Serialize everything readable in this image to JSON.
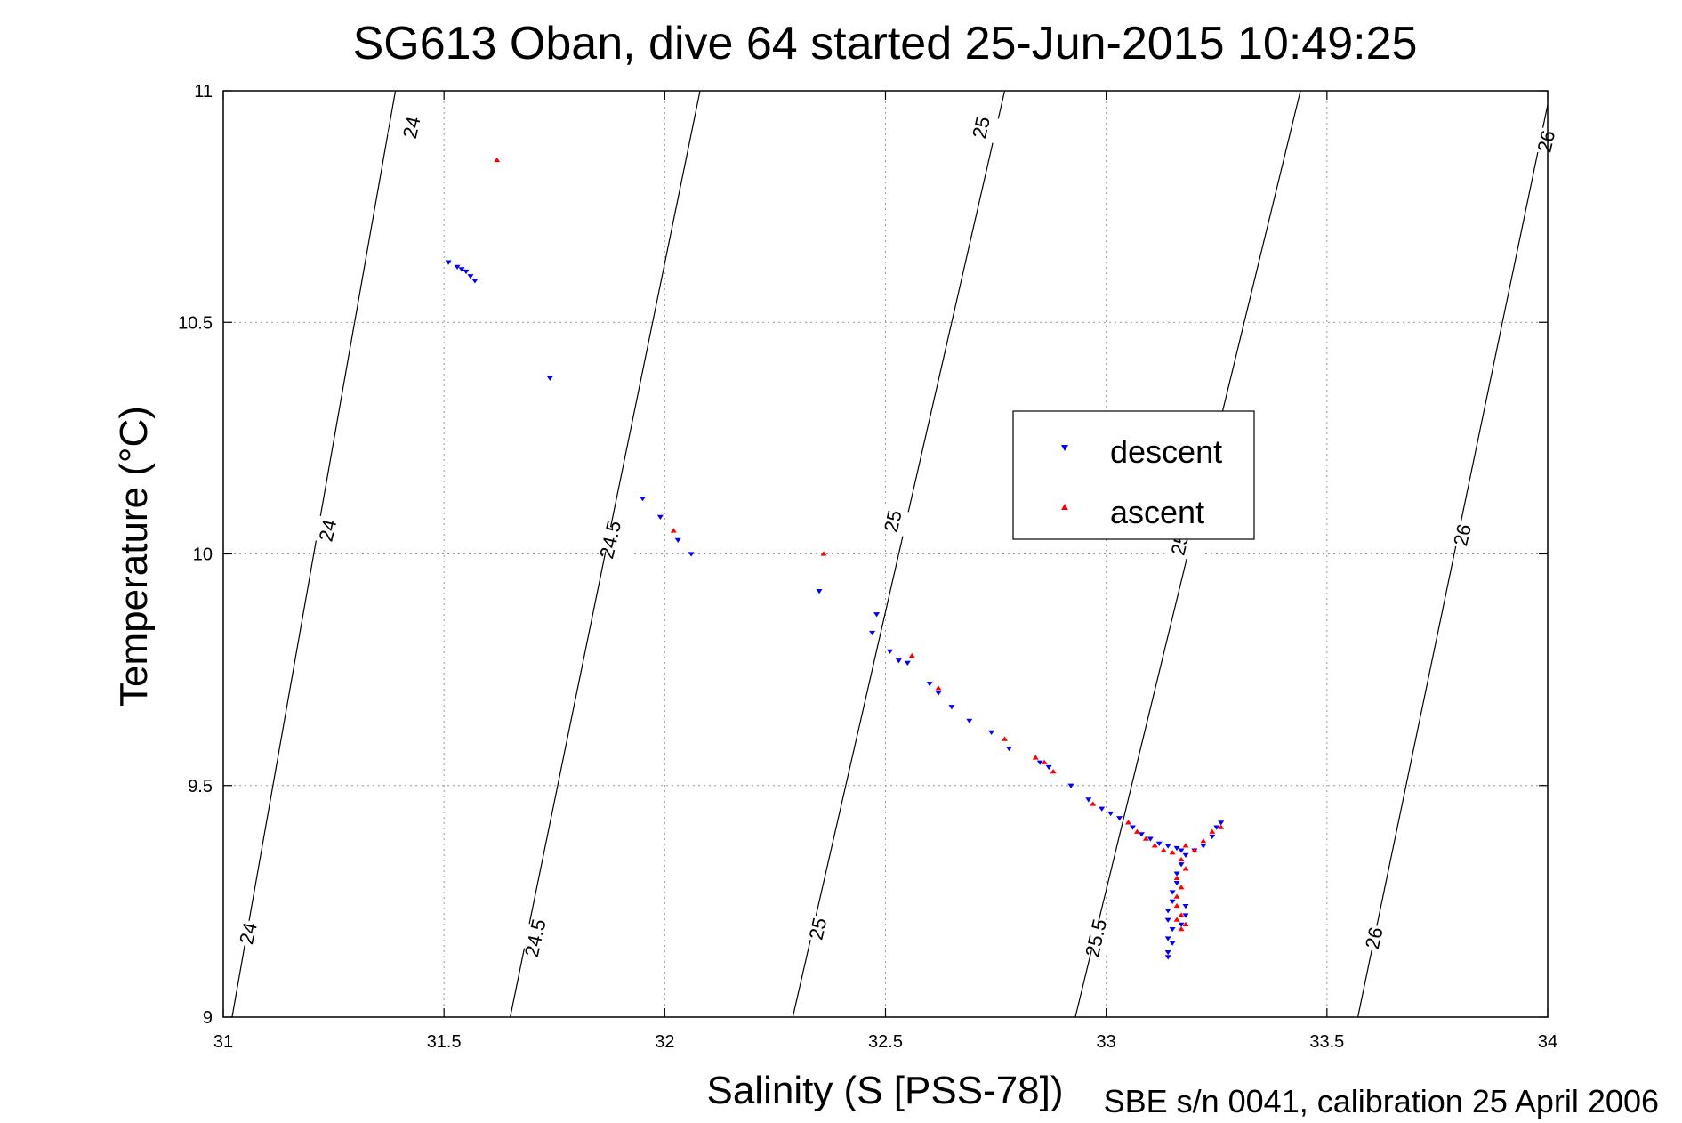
{
  "chart_data": {
    "type": "scatter",
    "title": "SG613 Oban, dive 64 started 25-Jun-2015 10:49:25",
    "xlabel": "Salinity (S [PSS-78])",
    "ylabel": "Temperature (°C)",
    "footnote": "SBE s/n 0041, calibration 25 April 2006",
    "xlim": [
      31,
      34
    ],
    "ylim": [
      9,
      11
    ],
    "x_ticks": [
      "31",
      "31.5",
      "32",
      "32.5",
      "33",
      "33.5",
      "34"
    ],
    "y_ticks": [
      "9",
      "9.5",
      "10",
      "10.5",
      "11"
    ],
    "grid": true,
    "legend_position": "center-right",
    "legend": [
      {
        "label": "descent",
        "color": "#0000ff",
        "marker": "triangle-down"
      },
      {
        "label": "ascent",
        "color": "#ff0000",
        "marker": "triangle-up"
      }
    ],
    "density_contours": [
      {
        "label": "24",
        "points": [
          [
            31.02,
            9.0
          ],
          [
            31.39,
            11.0
          ]
        ]
      },
      {
        "label": "24.5",
        "points": [
          [
            31.65,
            9.0
          ],
          [
            32.08,
            11.0
          ]
        ]
      },
      {
        "label": "25",
        "points": [
          [
            32.29,
            9.0
          ],
          [
            32.77,
            11.0
          ]
        ]
      },
      {
        "label": "25.5",
        "points": [
          [
            32.93,
            9.0
          ],
          [
            33.44,
            11.0
          ]
        ]
      },
      {
        "label": "26",
        "points": [
          [
            33.57,
            9.0
          ],
          [
            34.0,
            10.97
          ]
        ]
      }
    ],
    "contour_labels": [
      {
        "text": "24",
        "x": 31.43,
        "y": 10.92
      },
      {
        "text": "24",
        "x": 31.24,
        "y": 10.05
      },
      {
        "text": "24",
        "x": 31.06,
        "y": 9.18
      },
      {
        "text": "24.5",
        "x": 31.88,
        "y": 10.03
      },
      {
        "text": "24.5",
        "x": 31.71,
        "y": 9.17
      },
      {
        "text": "25",
        "x": 32.72,
        "y": 10.92
      },
      {
        "text": "25",
        "x": 32.52,
        "y": 10.07
      },
      {
        "text": "25",
        "x": 32.35,
        "y": 9.19
      },
      {
        "text": "25",
        "x": 33.17,
        "y": 10.02
      },
      {
        "text": "25.5",
        "x": 32.98,
        "y": 9.17
      },
      {
        "text": "26",
        "x": 34.0,
        "y": 10.89
      },
      {
        "text": "26",
        "x": 33.81,
        "y": 10.04
      },
      {
        "text": "26",
        "x": 33.61,
        "y": 9.17
      }
    ],
    "series": [
      {
        "name": "descent",
        "points": [
          [
            31.51,
            10.63
          ],
          [
            31.53,
            10.62
          ],
          [
            31.54,
            10.615
          ],
          [
            31.55,
            10.61
          ],
          [
            31.56,
            10.6
          ],
          [
            31.57,
            10.59
          ],
          [
            31.74,
            10.38
          ],
          [
            31.95,
            10.12
          ],
          [
            31.99,
            10.08
          ],
          [
            32.03,
            10.03
          ],
          [
            32.06,
            10.0
          ],
          [
            32.35,
            9.92
          ],
          [
            32.48,
            9.87
          ],
          [
            32.47,
            9.83
          ],
          [
            32.51,
            9.79
          ],
          [
            32.53,
            9.77
          ],
          [
            32.55,
            9.765
          ],
          [
            32.6,
            9.72
          ],
          [
            32.62,
            9.7
          ],
          [
            32.65,
            9.67
          ],
          [
            32.69,
            9.64
          ],
          [
            32.74,
            9.615
          ],
          [
            32.78,
            9.58
          ],
          [
            32.85,
            9.55
          ],
          [
            32.87,
            9.54
          ],
          [
            32.92,
            9.5
          ],
          [
            32.96,
            9.47
          ],
          [
            32.99,
            9.45
          ],
          [
            33.01,
            9.44
          ],
          [
            33.03,
            9.43
          ],
          [
            33.06,
            9.41
          ],
          [
            33.08,
            9.395
          ],
          [
            33.1,
            9.385
          ],
          [
            33.12,
            9.375
          ],
          [
            33.14,
            9.37
          ],
          [
            33.16,
            9.365
          ],
          [
            33.17,
            9.36
          ],
          [
            33.18,
            9.35
          ],
          [
            33.2,
            9.36
          ],
          [
            33.22,
            9.37
          ],
          [
            33.24,
            9.39
          ],
          [
            33.25,
            9.41
          ],
          [
            33.26,
            9.42
          ],
          [
            33.17,
            9.33
          ],
          [
            33.16,
            9.31
          ],
          [
            33.16,
            9.29
          ],
          [
            33.15,
            9.27
          ],
          [
            33.15,
            9.25
          ],
          [
            33.14,
            9.23
          ],
          [
            33.14,
            9.21
          ],
          [
            33.15,
            9.19
          ],
          [
            33.14,
            9.17
          ],
          [
            33.15,
            9.16
          ],
          [
            33.14,
            9.14
          ],
          [
            33.14,
            9.13
          ],
          [
            33.18,
            9.24
          ],
          [
            33.18,
            9.22
          ],
          [
            33.17,
            9.2
          ]
        ]
      },
      {
        "name": "ascent",
        "points": [
          [
            31.62,
            10.85
          ],
          [
            32.02,
            10.05
          ],
          [
            32.36,
            10.0
          ],
          [
            32.56,
            9.78
          ],
          [
            32.62,
            9.71
          ],
          [
            32.77,
            9.6
          ],
          [
            32.84,
            9.56
          ],
          [
            32.86,
            9.55
          ],
          [
            32.88,
            9.53
          ],
          [
            32.97,
            9.46
          ],
          [
            33.05,
            9.42
          ],
          [
            33.07,
            9.4
          ],
          [
            33.09,
            9.385
          ],
          [
            33.11,
            9.37
          ],
          [
            33.13,
            9.36
          ],
          [
            33.15,
            9.355
          ],
          [
            33.18,
            9.37
          ],
          [
            33.2,
            9.36
          ],
          [
            33.22,
            9.38
          ],
          [
            33.24,
            9.4
          ],
          [
            33.26,
            9.41
          ],
          [
            33.17,
            9.34
          ],
          [
            33.18,
            9.32
          ],
          [
            33.16,
            9.3
          ],
          [
            33.17,
            9.28
          ],
          [
            33.16,
            9.26
          ],
          [
            33.16,
            9.24
          ],
          [
            33.17,
            9.22
          ],
          [
            33.16,
            9.21
          ],
          [
            33.18,
            9.2
          ],
          [
            33.17,
            9.19
          ]
        ]
      }
    ]
  }
}
